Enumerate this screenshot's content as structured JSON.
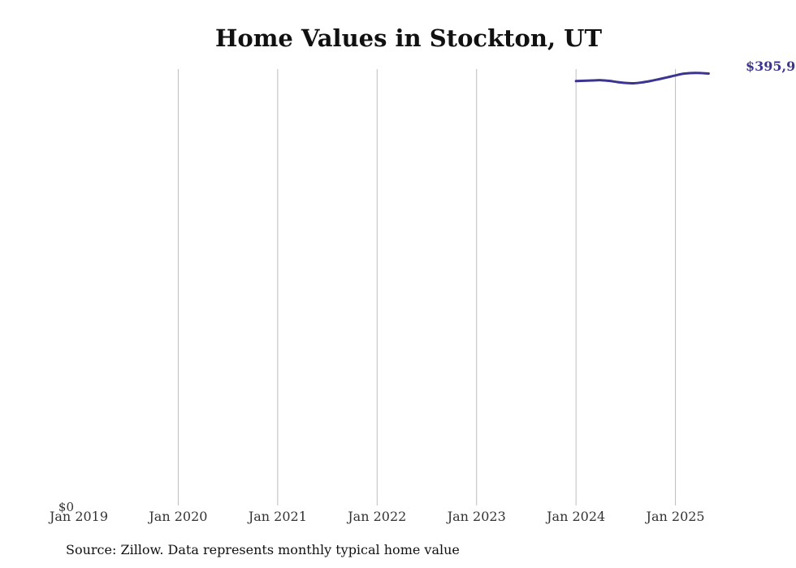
{
  "chart_data": {
    "type": "line",
    "title": "Home Values in Stockton, UT",
    "xlabel": "",
    "ylabel": "",
    "x_ticks": [
      "Jan 2019",
      "Jan 2020",
      "Jan 2021",
      "Jan 2022",
      "Jan 2023",
      "Jan 2024",
      "Jan 2025"
    ],
    "y_ticks": [
      "$0"
    ],
    "ylim": [
      0,
      400000
    ],
    "xlim": [
      "2019-01",
      "2025-08"
    ],
    "grid": {
      "vertical": true,
      "horizontal": false
    },
    "line_color": "#3b3590",
    "series": [
      {
        "x": [
          "2024-01",
          "2024-02",
          "2024-03",
          "2024-04",
          "2024-05",
          "2024-06",
          "2024-07",
          "2024-08",
          "2024-09",
          "2024-10",
          "2024-11",
          "2024-12",
          "2025-01",
          "2025-02",
          "2025-03",
          "2025-04",
          "2025-05"
        ],
        "values": [
          389000,
          389300,
          389600,
          389800,
          389200,
          388100,
          387300,
          387000,
          387800,
          389100,
          390700,
          392400,
          394200,
          395800,
          396400,
          396400,
          395900
        ]
      }
    ],
    "end_label": "$395,9"
  },
  "source": "Source: Zillow. Data represents monthly typical home value"
}
